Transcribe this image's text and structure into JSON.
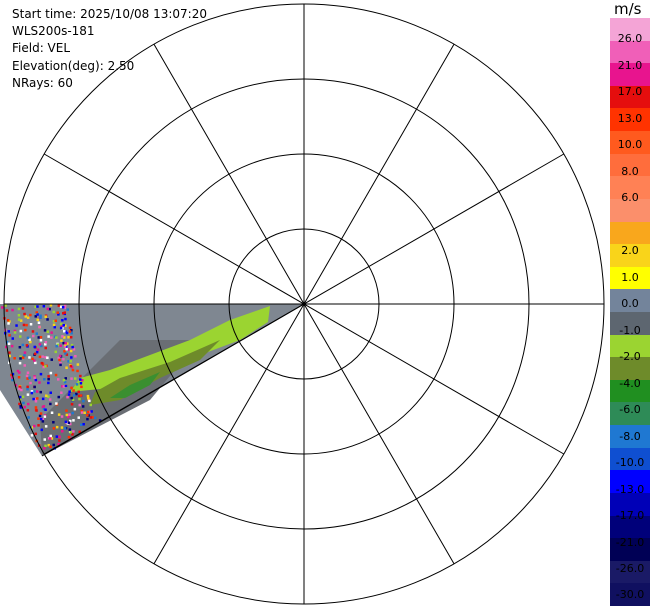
{
  "info": {
    "start_time": "Start time: 2025/10/08 13:07:20",
    "instrument": "WLS200s-181",
    "field": "Field: VEL",
    "elevation": "Elevation(deg): 2.50",
    "nrays": "NRays: 60"
  },
  "colorbar": {
    "unit": "m/s",
    "colors": [
      "#f4a4d6",
      "#f05fb8",
      "#e8148e",
      "#e50e0e",
      "#ff3300",
      "#ff5a1e",
      "#ff6d3c",
      "#ff8155",
      "#fb8f6b",
      "#f9a71c",
      "#f9d41a",
      "#ffff00",
      "#73849b",
      "#5d6670",
      "#9bd431",
      "#6e8b2a",
      "#208f20",
      "#2e8b57",
      "#1f78d2",
      "#0f4fd1",
      "#0000ff",
      "#0000b7",
      "#00007a",
      "#000055",
      "#1a1a66",
      "#101060"
    ],
    "labels": [
      "26.0",
      "21.0",
      "17.0",
      "13.0",
      "10.0",
      "8.0",
      "6.0",
      "2.0",
      "1.0",
      "0.0",
      "-1.0",
      "-2.0",
      "-4.0",
      "-6.0",
      "-8.0",
      "-10.0",
      "-13.0",
      "-17.0",
      "-21.0",
      "-26.0",
      "-30.0"
    ]
  }
}
